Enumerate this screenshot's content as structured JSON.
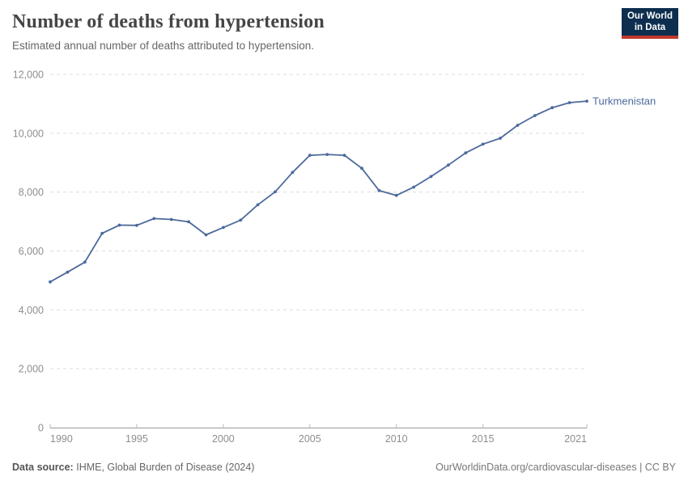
{
  "header": {
    "title": "Number of deaths from hypertension",
    "subtitle": "Estimated annual number of deaths attributed to hypertension."
  },
  "logo": {
    "line1": "Our World",
    "line2": "in Data",
    "bg_color": "#0d2e4e",
    "accent_color": "#c0392b"
  },
  "chart_data": {
    "type": "line",
    "title": "Number of deaths from hypertension",
    "subtitle": "Estimated annual number of deaths attributed to hypertension.",
    "xlabel": "",
    "ylabel": "",
    "grid": "horizontal-dashed",
    "legend_position": "end-of-line-label",
    "ylim": [
      0,
      12000
    ],
    "yticks": [
      0,
      2000,
      4000,
      6000,
      8000,
      10000,
      12000
    ],
    "ytick_labels": [
      "0",
      "2,000",
      "4,000",
      "6,000",
      "8,000",
      "10,000",
      "12,000"
    ],
    "xlim": [
      1990,
      2021
    ],
    "xticks": [
      1990,
      1995,
      2000,
      2005,
      2010,
      2015,
      2021
    ],
    "xtick_labels": [
      "1990",
      "1995",
      "2000",
      "2005",
      "2010",
      "2015",
      "2021"
    ],
    "x": [
      1990,
      1991,
      1992,
      1993,
      1994,
      1995,
      1996,
      1997,
      1998,
      1999,
      2000,
      2001,
      2002,
      2003,
      2004,
      2005,
      2006,
      2007,
      2008,
      2009,
      2010,
      2011,
      2012,
      2013,
      2014,
      2015,
      2016,
      2017,
      2018,
      2019,
      2020,
      2021
    ],
    "series": [
      {
        "name": "Turkmenistan",
        "color": "#4C6A9C",
        "values": [
          4950,
          5280,
          5620,
          6600,
          6880,
          6870,
          7100,
          7070,
          6990,
          6550,
          6800,
          7050,
          7570,
          8010,
          8670,
          9250,
          9280,
          9250,
          8810,
          8050,
          7890,
          8170,
          8530,
          8920,
          9330,
          9630,
          9830,
          10270,
          10600,
          10870,
          11040,
          11090
        ]
      }
    ],
    "colors": {
      "gridline": "#dddddd",
      "axis_line": "#999999",
      "tick_label": "#8e8e8e"
    }
  },
  "footer": {
    "source_label": "Data source:",
    "source_text": "IHME, Global Burden of Disease (2024)",
    "credit": "OurWorldinData.org/cardiovascular-diseases | CC BY"
  }
}
